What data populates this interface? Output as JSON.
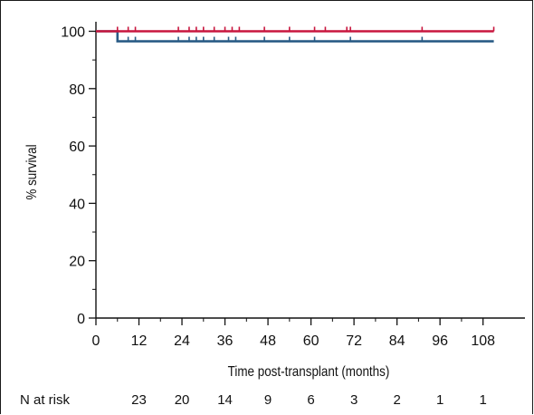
{
  "chart_data": {
    "type": "line",
    "xlabel": "Time post-transplant (months)",
    "ylabel": "% survival",
    "xlim": [
      0,
      110
    ],
    "ylim": [
      0,
      100
    ],
    "x_ticks": [
      0,
      12,
      24,
      36,
      48,
      60,
      72,
      84,
      96,
      108
    ],
    "y_ticks": [
      0,
      20,
      40,
      60,
      80,
      100
    ],
    "grid": false,
    "series": [
      {
        "color": "#c8163e",
        "steps": [
          [
            0,
            100
          ],
          [
            111,
            100
          ]
        ],
        "censor_times": [
          6,
          9,
          11,
          23,
          26,
          28,
          30,
          33,
          36,
          38,
          40,
          47,
          54,
          61,
          64,
          70,
          71,
          91,
          111
        ]
      },
      {
        "color": "#2a5c86",
        "steps": [
          [
            0,
            100
          ],
          [
            6,
            100
          ],
          [
            6,
            96.5
          ],
          [
            111,
            96.5
          ]
        ],
        "censor_times": [
          9,
          11,
          23,
          26,
          28,
          30,
          33,
          37,
          39,
          47,
          54,
          61,
          71,
          91
        ]
      }
    ],
    "risk_table": {
      "label": "N at risk",
      "times": [
        12,
        24,
        36,
        48,
        60,
        72,
        84,
        96,
        108
      ],
      "counts": [
        "23",
        "20",
        "14",
        "9",
        "6",
        "3",
        "2",
        "1",
        "1"
      ]
    }
  }
}
